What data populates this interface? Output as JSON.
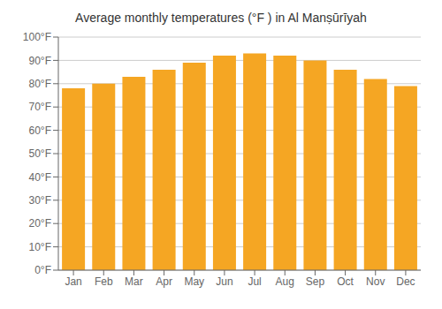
{
  "chart_data": {
    "type": "bar",
    "title": "Average monthly temperatures (°F ) in Al Manṣūrīyah",
    "categories": [
      "Jan",
      "Feb",
      "Mar",
      "Apr",
      "May",
      "Jun",
      "Jul",
      "Aug",
      "Sep",
      "Oct",
      "Nov",
      "Dec"
    ],
    "values": [
      78,
      80,
      83,
      86,
      89,
      92,
      93,
      92,
      90,
      86,
      82,
      79
    ],
    "color": "#F5A623",
    "ylim": [
      0,
      100
    ],
    "yticks": [
      {
        "value": 0,
        "label": "0°F"
      },
      {
        "value": 10,
        "label": "10°F"
      },
      {
        "value": 20,
        "label": "20°F"
      },
      {
        "value": 30,
        "label": "30°F"
      },
      {
        "value": 40,
        "label": "40°F"
      },
      {
        "value": 50,
        "label": "50°F"
      },
      {
        "value": 60,
        "label": "60°F"
      },
      {
        "value": 70,
        "label": "70°F"
      },
      {
        "value": 80,
        "label": "80°F"
      },
      {
        "value": 90,
        "label": "90°F"
      },
      {
        "value": 100,
        "label": "100°F"
      }
    ],
    "grid": true
  }
}
